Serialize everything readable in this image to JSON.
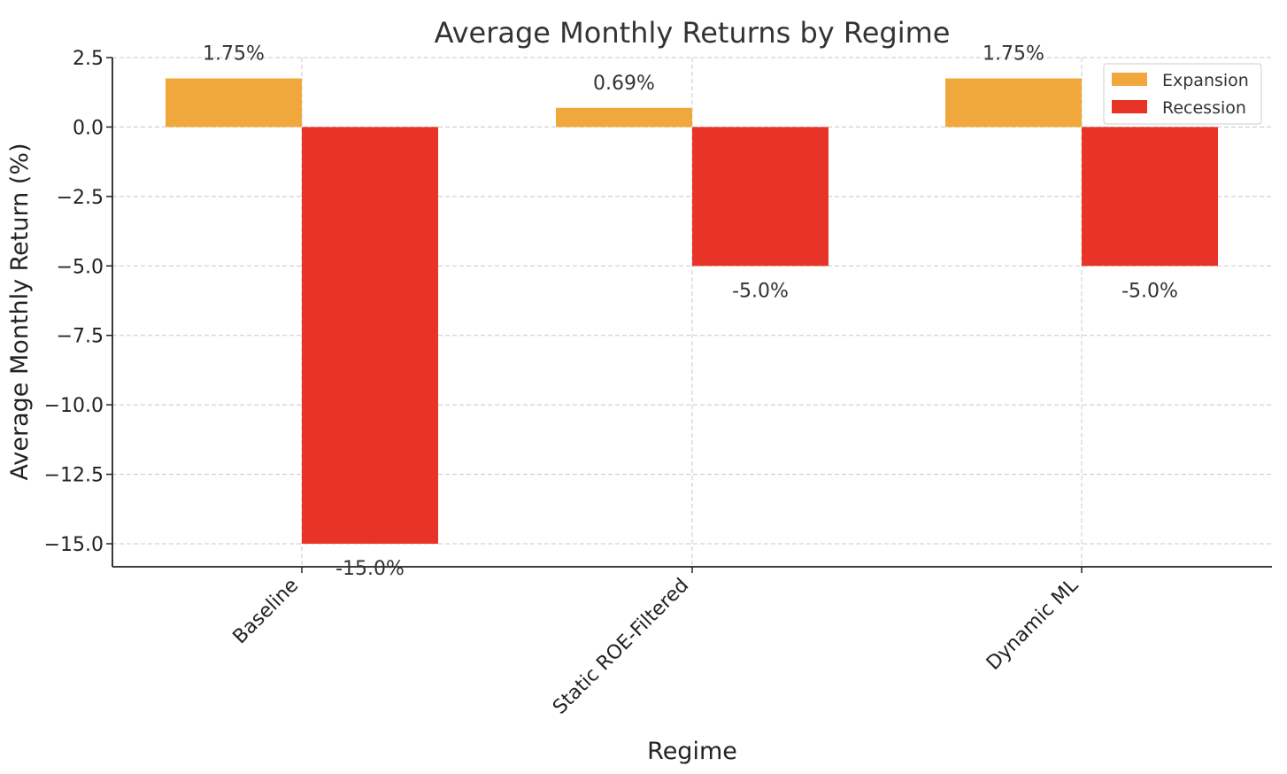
{
  "chart_data": {
    "type": "bar",
    "title": "Average Monthly Returns by Regime",
    "xlabel": "Regime",
    "ylabel": "Average Monthly Return (%)",
    "categories": [
      "Baseline",
      "Static ROE-Filtered",
      "Dynamic ML"
    ],
    "series": [
      {
        "name": "Expansion",
        "color": "#F0A83C",
        "values": [
          1.75,
          0.69,
          1.75
        ],
        "data_labels": [
          "1.75%",
          "0.69%",
          "1.75%"
        ]
      },
      {
        "name": "Recession",
        "color": "#E83426",
        "values": [
          -15.0,
          -5.0,
          -5.0
        ],
        "data_labels": [
          "-15.0%",
          "-5.0%",
          "-5.0%"
        ]
      }
    ],
    "y_ticks": [
      2.5,
      0.0,
      -2.5,
      -5.0,
      -7.5,
      -10.0,
      -12.5,
      -15.0
    ],
    "y_tick_labels": [
      "2.5",
      "0.0",
      "−2.5",
      "−5.0",
      "−7.5",
      "−10.0",
      "−12.5",
      "−15.0"
    ],
    "ylim": [
      -15.85,
      2.5
    ],
    "grid": true,
    "legend_position": "top-right"
  }
}
